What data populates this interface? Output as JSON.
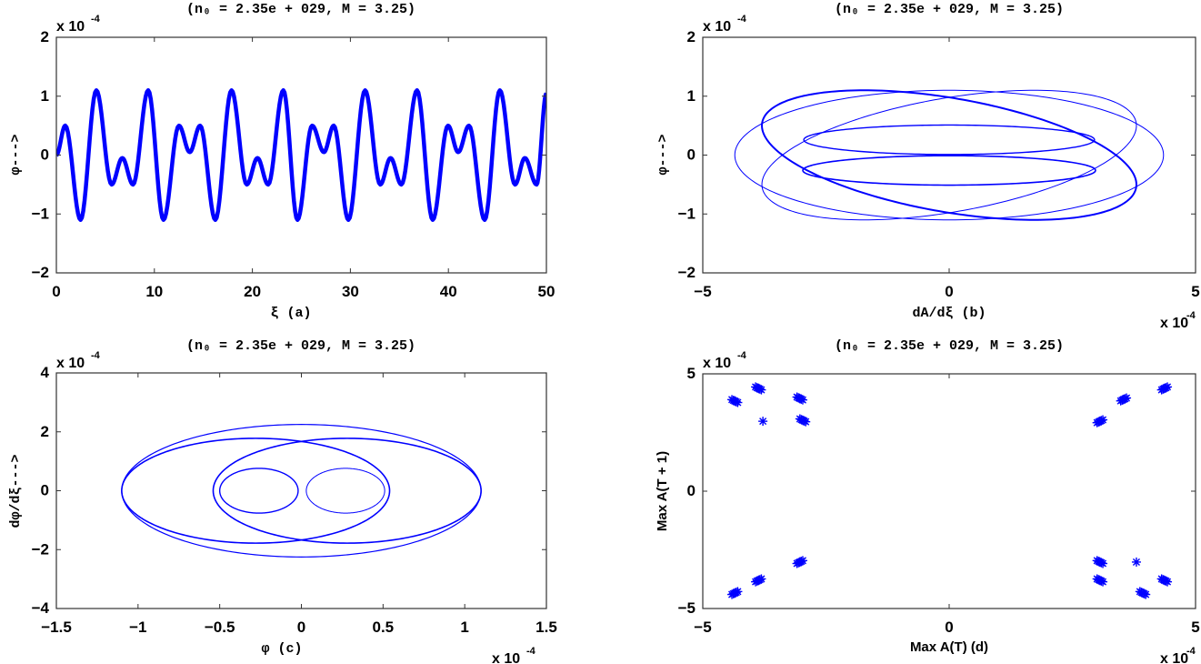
{
  "chart_data": [
    {
      "panel": "(a)",
      "type": "line",
      "title": "(n₀ = 2.35e + 029,  M = 3.25)",
      "xlabel": "ξ      (a)",
      "ylabel": "φ--->",
      "y_exponent": "x 10",
      "exponent_power": "-4",
      "xlim": [
        0,
        50
      ],
      "ylim": [
        -2,
        2
      ],
      "xticks": [
        0,
        10,
        20,
        30,
        40,
        50
      ],
      "yticks": [
        -2,
        -1,
        0,
        1,
        2
      ],
      "color": "#0000ff",
      "extrema_xi": [
        0,
        0.91,
        2.47,
        4.08,
        5.64,
        6.73,
        7.82,
        9.37,
        10.93,
        12.51,
        13.61,
        14.67,
        16.22,
        17.87,
        19.43,
        20.52,
        21.61,
        23.16,
        24.6,
        26.1,
        27.3,
        28.3,
        29.8,
        31.5,
        33.05,
        34.1,
        35.2,
        36.8,
        38.4,
        39.96,
        41.0,
        42.1,
        43.7,
        45.25,
        46.8,
        47.8,
        49.0,
        50
      ],
      "extrema_phi": [
        0,
        0.5,
        -1.1,
        1.1,
        -0.5,
        -0.05,
        -0.5,
        1.1,
        -1.1,
        0.5,
        0.05,
        0.5,
        -1.1,
        1.1,
        -0.5,
        -0.05,
        -0.5,
        1.1,
        -1.1,
        0.5,
        0.05,
        0.5,
        -1.1,
        1.1,
        -0.5,
        -0.05,
        -0.5,
        1.1,
        -1.1,
        0.5,
        0.05,
        0.5,
        -1.1,
        1.1,
        -0.5,
        -0.05,
        -0.5,
        1.05
      ]
    },
    {
      "panel": "(b)",
      "type": "line",
      "title": "(n₀ = 2.35e + 029,  M = 3.25)",
      "xlabel": "dA/dξ      (b)",
      "ylabel": "φ--->",
      "y_exponent": "x 10",
      "x_exponent": "x 10",
      "exponent_power": "-4",
      "xlim": [
        -5,
        5
      ],
      "ylim": [
        -2,
        2
      ],
      "xticks": [
        -5,
        0,
        5
      ],
      "yticks": [
        -2,
        -1,
        0,
        1,
        2
      ],
      "color": "#0000ff",
      "curves": [
        {
          "cx": 0,
          "cy": 0,
          "a": 4.35,
          "b": 1.1,
          "shear": 0,
          "weight": 1
        },
        {
          "cx": 0,
          "cy": 0,
          "a": 3.8,
          "b": 0.98,
          "shear": -0.5,
          "weight": 2
        },
        {
          "cx": 0,
          "cy": 0,
          "a": 3.8,
          "b": 0.98,
          "shear": 0.5,
          "weight": 1
        },
        {
          "cx": 0,
          "cy": 0.26,
          "a": 2.95,
          "b": 0.25,
          "shear": 0,
          "weight": 1.4
        },
        {
          "cx": 0,
          "cy": -0.26,
          "a": 2.97,
          "b": 0.25,
          "shear": 0,
          "weight": 1.6
        }
      ]
    },
    {
      "panel": "(c)",
      "type": "line",
      "title": "(n₀ = 2.35e + 029,  M = 3.25)",
      "xlabel": "φ       (c)",
      "ylabel": "dφ/dξ--->",
      "y_exponent": "x 10",
      "x_exponent": "x 10",
      "exponent_power": "-4",
      "xlim": [
        -1.5,
        1.5
      ],
      "ylim": [
        -4,
        4
      ],
      "xticks": [
        -1.5,
        -1,
        -0.5,
        0,
        0.5,
        1,
        1.5
      ],
      "yticks": [
        -4,
        -2,
        0,
        2,
        4
      ],
      "color": "#0000ff",
      "curves": [
        {
          "cx": 0,
          "cy": 0,
          "a": 1.1,
          "b": 2.25,
          "shear": 0,
          "weight": 1.2
        },
        {
          "cx": -0.28,
          "cy": 0,
          "a": 0.82,
          "b": 1.78,
          "shear": 0,
          "weight": 1.6
        },
        {
          "cx": 0.28,
          "cy": 0,
          "a": 0.82,
          "b": 1.78,
          "shear": 0,
          "weight": 1.6
        },
        {
          "cx": -0.26,
          "cy": 0,
          "a": 0.24,
          "b": 0.76,
          "shear": 0,
          "weight": 1.4
        },
        {
          "cx": 0.27,
          "cy": 0,
          "a": 0.24,
          "b": 0.76,
          "shear": 0,
          "weight": 1
        }
      ]
    },
    {
      "panel": "(d)",
      "type": "scatter",
      "title": "(n₀ = 2.35e + 029,  M = 3.25)",
      "xlabel": "Max A(T)   (d)",
      "ylabel": "Max A(T + 1)",
      "y_exponent": "x 10",
      "x_exponent": "x 10",
      "exponent_power": "-4",
      "xlim": [
        -5,
        5
      ],
      "ylim": [
        -5,
        5
      ],
      "xticks": [
        -5,
        0,
        5
      ],
      "yticks": [
        -5,
        0,
        5
      ],
      "marker": "asterisk",
      "color": "#0000ff",
      "points": [
        [
          -4.35,
          3.84
        ],
        [
          -3.87,
          4.38
        ],
        [
          -3.78,
          2.98
        ],
        [
          -3.03,
          3.95
        ],
        [
          -2.97,
          3.02
        ],
        [
          3.06,
          2.98
        ],
        [
          3.54,
          3.91
        ],
        [
          4.37,
          4.38
        ],
        [
          -4.35,
          -4.34
        ],
        [
          -3.87,
          -3.8
        ],
        [
          -3.03,
          -3.02
        ],
        [
          3.06,
          -3.02
        ],
        [
          3.06,
          -3.8
        ],
        [
          3.8,
          -3.02
        ],
        [
          3.93,
          -4.34
        ],
        [
          4.37,
          -3.8
        ]
      ]
    }
  ]
}
